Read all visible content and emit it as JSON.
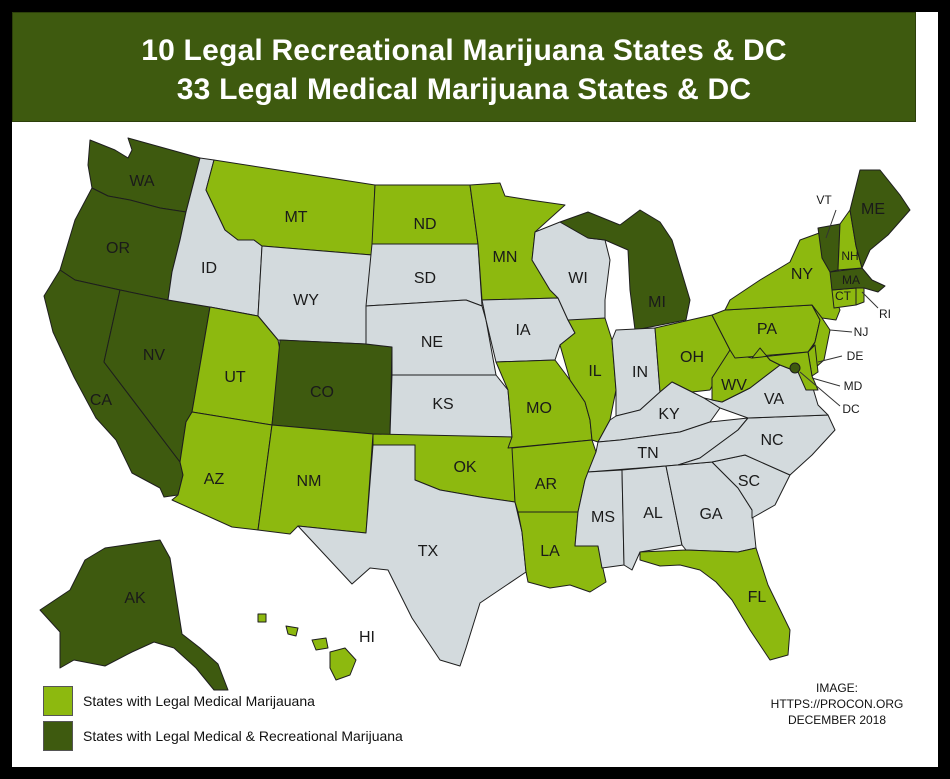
{
  "title": {
    "line1": "10 Legal Recreational Marijuana States & DC",
    "line2": "33 Legal Medical Marijuana States & DC"
  },
  "colors": {
    "medical": "#8db90f",
    "recreational": "#3e5a0f",
    "none": "#d3dadd",
    "border": "#1e1e1e",
    "title_bg": "#3e5a0f"
  },
  "states": {
    "WA": "recreational",
    "OR": "recreational",
    "CA": "recreational",
    "NV": "recreational",
    "CO": "recreational",
    "AK": "recreational",
    "MI": "recreational",
    "VT": "recreational",
    "MA": "recreational",
    "ME": "recreational",
    "DC": "recreational",
    "MT": "medical",
    "ND": "medical",
    "MN": "medical",
    "UT": "medical",
    "AZ": "medical",
    "NM": "medical",
    "OK": "medical",
    "AR": "medical",
    "LA": "medical",
    "MO": "medical",
    "IL": "medical",
    "OH": "medical",
    "WV": "medical",
    "PA": "medical",
    "NY": "medical",
    "NJ": "medical",
    "DE": "medical",
    "MD": "medical",
    "CT": "medical",
    "RI": "medical",
    "NH": "medical",
    "FL": "medical",
    "HI": "medical",
    "ID": "none",
    "WY": "none",
    "SD": "none",
    "NE": "none",
    "KS": "none",
    "TX": "none",
    "IA": "none",
    "WI": "none",
    "IN": "none",
    "KY": "none",
    "TN": "none",
    "MS": "none",
    "AL": "none",
    "GA": "none",
    "SC": "none",
    "NC": "none",
    "VA": "none"
  },
  "labels": {
    "WA": "WA",
    "OR": "OR",
    "CA": "CA",
    "NV": "NV",
    "ID": "ID",
    "MT": "MT",
    "WY": "WY",
    "UT": "UT",
    "CO": "CO",
    "AZ": "AZ",
    "NM": "NM",
    "ND": "ND",
    "SD": "SD",
    "NE": "NE",
    "KS": "KS",
    "OK": "OK",
    "TX": "TX",
    "MN": "MN",
    "IA": "IA",
    "MO": "MO",
    "AR": "AR",
    "LA": "LA",
    "WI": "WI",
    "IL": "IL",
    "MI": "MI",
    "IN": "IN",
    "OH": "OH",
    "KY": "KY",
    "TN": "TN",
    "MS": "MS",
    "AL": "AL",
    "GA": "GA",
    "FL": "FL",
    "SC": "SC",
    "NC": "NC",
    "VA": "VA",
    "WV": "WV",
    "PA": "PA",
    "NY": "NY",
    "VT": "VT",
    "NH": "NH",
    "ME": "ME",
    "MA": "MA",
    "CT": "CT",
    "RI": "RI",
    "NJ": "NJ",
    "DE": "DE",
    "MD": "MD",
    "DC": "DC",
    "AK": "AK",
    "HI": "HI"
  },
  "legend": {
    "medical": "States with Legal Medical Marijauana",
    "recreational": "States with Legal Medical & Recreational Marijuana"
  },
  "credit": {
    "line1": "IMAGE:",
    "line2": "HTTPS://PROCON.ORG",
    "line3": "DECEMBER 2018"
  }
}
